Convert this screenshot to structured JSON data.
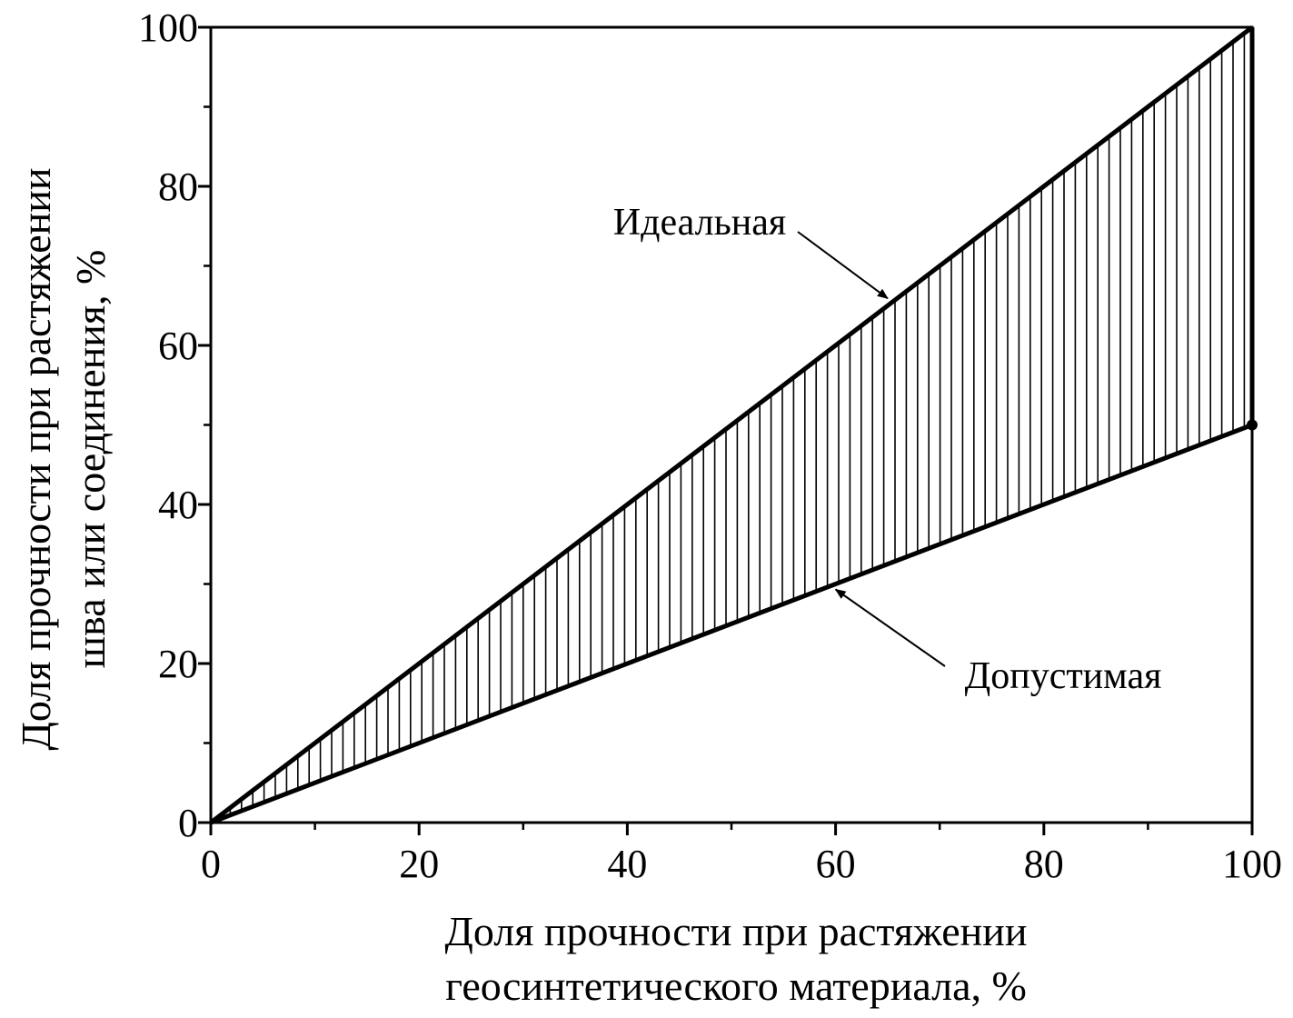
{
  "chart_data": {
    "type": "area",
    "title": "",
    "xlabel_lines": [
      "Доля прочности при растяжении",
      "геосинтетического материала, %"
    ],
    "ylabel_lines": [
      "Доля прочности при растяжении",
      "шва или соединения, %"
    ],
    "xlim": [
      0,
      100
    ],
    "ylim": [
      0,
      100
    ],
    "x_ticks": [
      0,
      20,
      40,
      60,
      80,
      100
    ],
    "y_ticks": [
      0,
      20,
      40,
      60,
      80,
      100
    ],
    "grid": false,
    "fill_between": {
      "upper": "ideal",
      "lower": "allowable",
      "pattern": "vertical-hatch"
    },
    "series": [
      {
        "id": "ideal",
        "x": [
          0,
          100
        ],
        "y": [
          0,
          100
        ]
      },
      {
        "id": "allowable",
        "x": [
          0,
          100
        ],
        "y": [
          0,
          50
        ]
      }
    ],
    "annotations": [
      {
        "text": "Идеальная",
        "target": {
          "x": 65,
          "y": 65
        }
      },
      {
        "text": "Допустимая",
        "target": {
          "x": 60,
          "y": 30
        }
      }
    ],
    "colors": {
      "ink": "#000000",
      "background": "#ffffff"
    }
  }
}
